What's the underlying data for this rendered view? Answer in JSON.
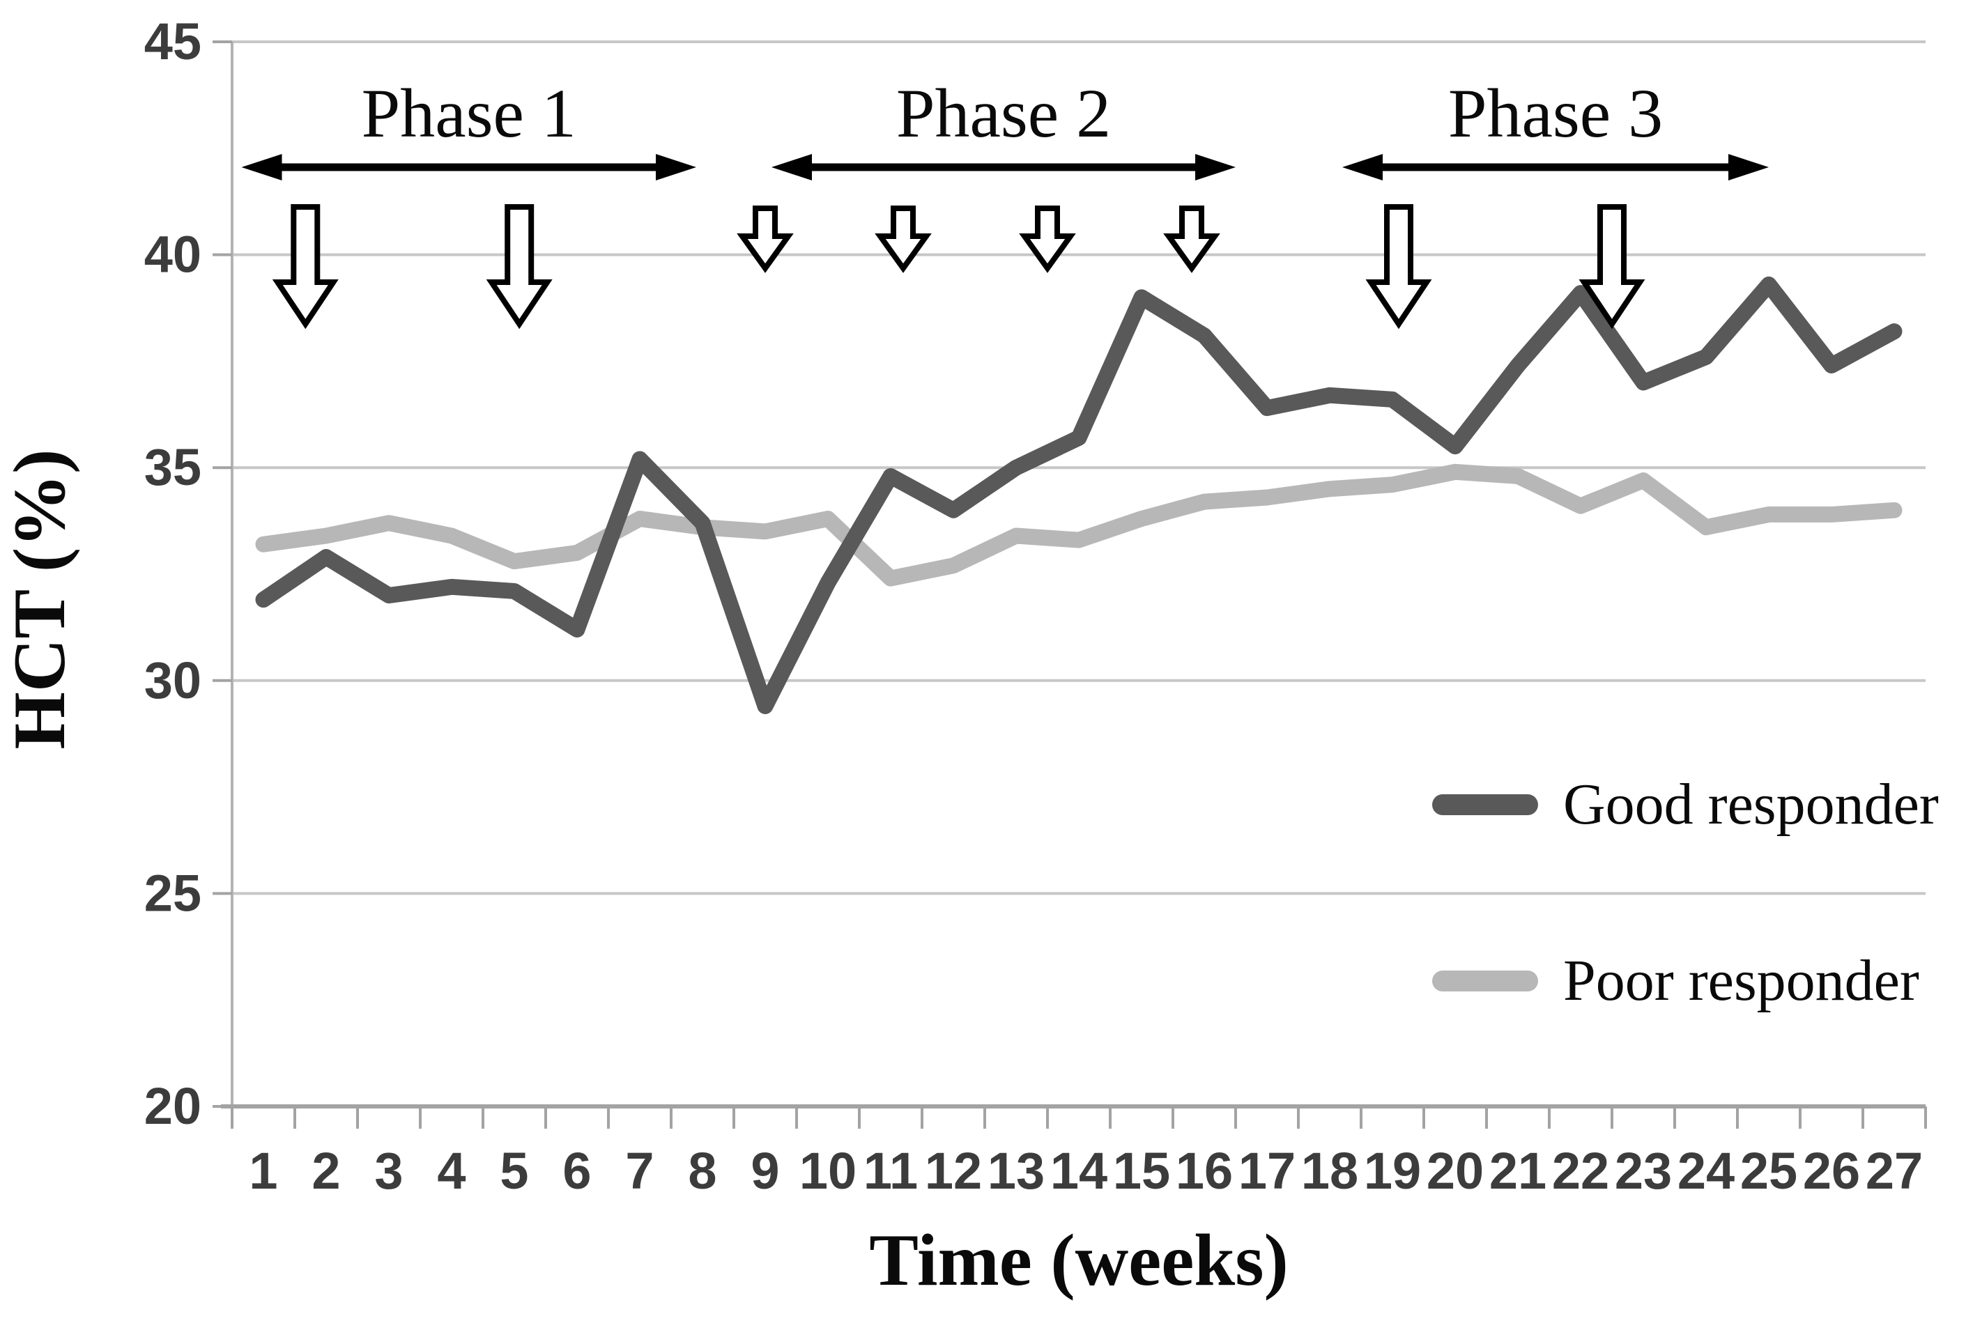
{
  "chart_data": {
    "type": "line",
    "title": "",
    "xlabel": "Time (weeks)",
    "ylabel": "HCT (%)",
    "x": [
      1,
      2,
      3,
      4,
      5,
      6,
      7,
      8,
      9,
      10,
      11,
      12,
      13,
      14,
      15,
      16,
      17,
      18,
      19,
      20,
      21,
      22,
      23,
      24,
      25,
      26,
      27
    ],
    "ylim": [
      20,
      45
    ],
    "yticks": [
      20,
      25,
      30,
      35,
      40,
      45
    ],
    "grid": true,
    "legend_position": "middle-right",
    "series": [
      {
        "name": "Good responder",
        "color": "#595959",
        "values": [
          31.9,
          32.9,
          32.0,
          32.2,
          32.1,
          31.2,
          35.2,
          33.7,
          29.4,
          32.3,
          34.8,
          34.0,
          35.0,
          35.7,
          39.0,
          38.1,
          36.4,
          36.7,
          36.6,
          35.5,
          37.4,
          39.1,
          37.0,
          37.6,
          39.3,
          37.4,
          38.2
        ]
      },
      {
        "name": "Poor responder",
        "color": "#b7b7b7",
        "values": [
          33.2,
          33.4,
          33.7,
          33.4,
          32.8,
          33.0,
          33.8,
          33.6,
          33.5,
          33.8,
          32.4,
          32.7,
          33.4,
          33.3,
          33.8,
          34.2,
          34.3,
          34.5,
          34.6,
          34.9,
          34.8,
          34.1,
          34.7,
          33.6,
          33.9,
          33.9,
          34.0
        ]
      }
    ],
    "phases": [
      {
        "label": "Phase 1",
        "from_week": 0.65,
        "to_week": 7.9
      },
      {
        "label": "Phase 2",
        "from_week": 9.1,
        "to_week": 16.5
      },
      {
        "label": "Phase 3",
        "from_week": 18.2,
        "to_week": 25.0
      }
    ],
    "injection_arrows": {
      "tall_weeks": [
        1.67,
        5.08,
        19.1,
        22.5
      ],
      "short_weeks": [
        9.0,
        11.2,
        13.5,
        15.8
      ]
    }
  },
  "colors": {
    "background": "#ffffff",
    "gridline": "#c7c7c7",
    "axis": "#a3a3a3",
    "yaxis": "#b3b3b3",
    "tick_text": "#3c3c3c",
    "text": "#0a0a0a",
    "arrow_outline": "#000000",
    "arrow_fill": "#ffffff"
  }
}
